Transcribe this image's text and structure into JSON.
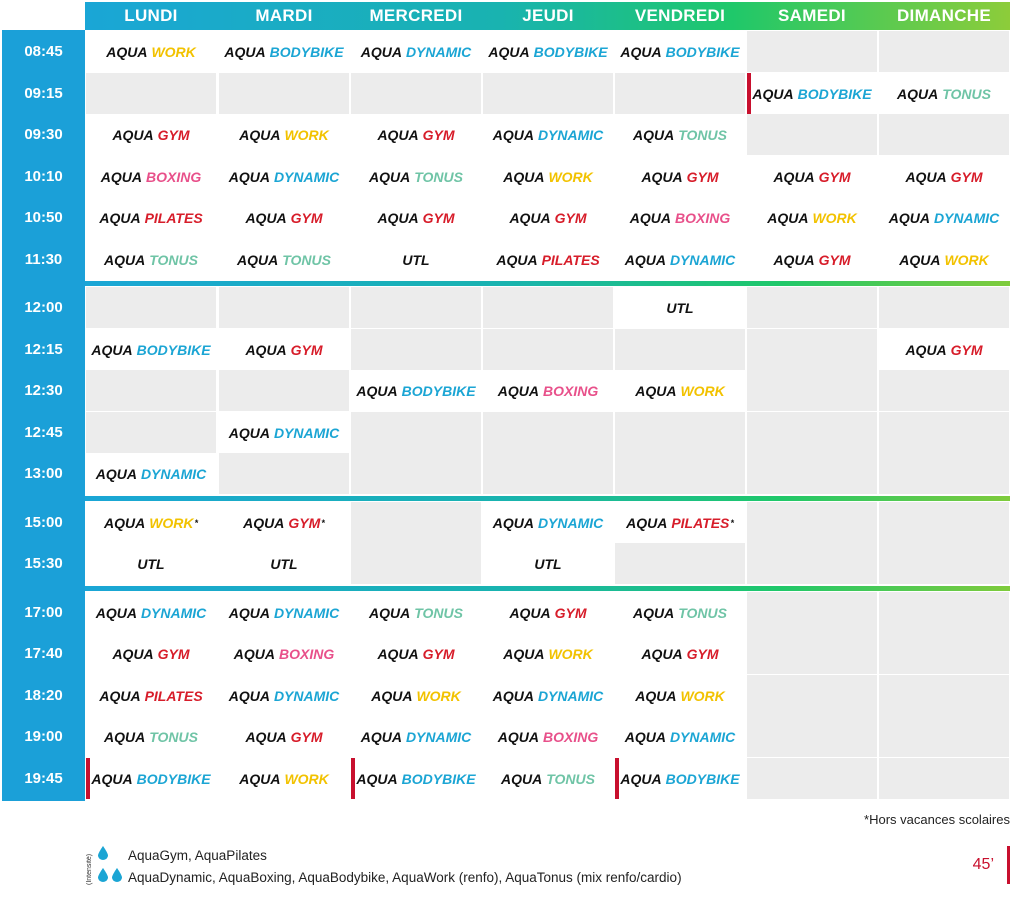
{
  "colors": {
    "work": "#f2c200",
    "bodybike": "#1ba5d4",
    "dynamic": "#1ba5d4",
    "gym": "#d71d2a",
    "tonus": "#6fc4a6",
    "boxing": "#e8508a",
    "pilates": "#d71d2a",
    "utl": "#111111",
    "marker": "#c8102e"
  },
  "days": [
    "LUNDI",
    "MARDI",
    "MERCREDI",
    "JEUDI",
    "VENDREDI",
    "SAMEDI",
    "DIMANCHE"
  ],
  "prefix": "AQUA",
  "blocks": [
    {
      "rows": [
        {
          "time": "08:45",
          "cells": [
            {
              "n": "WORK",
              "c": "work"
            },
            {
              "n": "BODYBIKE",
              "c": "bodybike"
            },
            {
              "n": "DYNAMIC",
              "c": "dynamic"
            },
            {
              "n": "BODYBIKE",
              "c": "bodybike"
            },
            {
              "n": "BODYBIKE",
              "c": "bodybike"
            },
            null,
            null
          ]
        },
        {
          "time": "09:15",
          "cells": [
            null,
            null,
            null,
            null,
            null,
            {
              "n": "BODYBIKE",
              "c": "bodybike",
              "mark": true
            },
            {
              "n": "TONUS",
              "c": "tonus"
            }
          ]
        },
        {
          "time": "09:30",
          "cells": [
            {
              "n": "GYM",
              "c": "gym"
            },
            {
              "n": "WORK",
              "c": "work"
            },
            {
              "n": "GYM",
              "c": "gym"
            },
            {
              "n": "DYNAMIC",
              "c": "dynamic"
            },
            {
              "n": "TONUS",
              "c": "tonus"
            },
            null,
            null
          ]
        },
        {
          "time": "10:10",
          "cells": [
            {
              "n": "BOXING",
              "c": "boxing"
            },
            {
              "n": "DYNAMIC",
              "c": "dynamic"
            },
            {
              "n": "TONUS",
              "c": "tonus"
            },
            {
              "n": "WORK",
              "c": "work"
            },
            {
              "n": "GYM",
              "c": "gym"
            },
            {
              "n": "GYM",
              "c": "gym"
            },
            {
              "n": "GYM",
              "c": "gym"
            }
          ]
        },
        {
          "time": "10:50",
          "cells": [
            {
              "n": "PILATES",
              "c": "pilates"
            },
            {
              "n": "GYM",
              "c": "gym"
            },
            {
              "n": "GYM",
              "c": "gym"
            },
            {
              "n": "GYM",
              "c": "gym"
            },
            {
              "n": "BOXING",
              "c": "boxing"
            },
            {
              "n": "WORK",
              "c": "work"
            },
            {
              "n": "DYNAMIC",
              "c": "dynamic"
            }
          ]
        },
        {
          "time": "11:30",
          "cells": [
            {
              "n": "TONUS",
              "c": "tonus"
            },
            {
              "n": "TONUS",
              "c": "tonus"
            },
            {
              "n": "UTL",
              "c": "utl",
              "plain": true
            },
            {
              "n": "PILATES",
              "c": "pilates"
            },
            {
              "n": "DYNAMIC",
              "c": "dynamic"
            },
            {
              "n": "GYM",
              "c": "gym"
            },
            {
              "n": "WORK",
              "c": "work"
            }
          ]
        }
      ]
    },
    {
      "rows": [
        {
          "time": "12:00",
          "cells": [
            null,
            null,
            null,
            null,
            {
              "n": "UTL",
              "c": "utl",
              "plain": true
            },
            null,
            null
          ]
        },
        {
          "time": "12:15",
          "cells": [
            {
              "n": "BODYBIKE",
              "c": "bodybike"
            },
            {
              "n": "GYM",
              "c": "gym"
            },
            null,
            null,
            null,
            null,
            {
              "n": "GYM",
              "c": "gym"
            }
          ]
        },
        {
          "time": "12:30",
          "cells": [
            null,
            null,
            {
              "n": "BODYBIKE",
              "c": "bodybike"
            },
            {
              "n": "BOXING",
              "c": "boxing"
            },
            {
              "n": "WORK",
              "c": "work"
            },
            null,
            null
          ]
        },
        {
          "time": "12:45",
          "cells": [
            null,
            {
              "n": "DYNAMIC",
              "c": "dynamic"
            },
            null,
            null,
            null,
            null,
            null
          ]
        },
        {
          "time": "13:00",
          "cells": [
            {
              "n": "DYNAMIC",
              "c": "dynamic"
            },
            null,
            null,
            null,
            null,
            null,
            null
          ]
        }
      ]
    },
    {
      "rows": [
        {
          "time": "15:00",
          "cells": [
            {
              "n": "WORK",
              "c": "work",
              "star": "*"
            },
            {
              "n": "GYM",
              "c": "gym",
              "star": "*"
            },
            null,
            {
              "n": "DYNAMIC",
              "c": "dynamic"
            },
            {
              "n": "PILATES",
              "c": "pilates",
              "star": "*"
            },
            null,
            null
          ]
        },
        {
          "time": "15:30",
          "cells": [
            {
              "n": "UTL",
              "c": "utl",
              "plain": true
            },
            {
              "n": "UTL",
              "c": "utl",
              "plain": true
            },
            null,
            {
              "n": "UTL",
              "c": "utl",
              "plain": true
            },
            null,
            null,
            null
          ]
        }
      ]
    },
    {
      "rows": [
        {
          "time": "17:00",
          "cells": [
            {
              "n": "DYNAMIC",
              "c": "dynamic"
            },
            {
              "n": "DYNAMIC",
              "c": "dynamic"
            },
            {
              "n": "TONUS",
              "c": "tonus"
            },
            {
              "n": "GYM",
              "c": "gym"
            },
            {
              "n": "TONUS",
              "c": "tonus"
            },
            null,
            null
          ]
        },
        {
          "time": "17:40",
          "cells": [
            {
              "n": "GYM",
              "c": "gym"
            },
            {
              "n": "BOXING",
              "c": "boxing"
            },
            {
              "n": "GYM",
              "c": "gym"
            },
            {
              "n": "WORK",
              "c": "work"
            },
            {
              "n": "GYM",
              "c": "gym"
            },
            null,
            null
          ]
        },
        {
          "time": "18:20",
          "cells": [
            {
              "n": "PILATES",
              "c": "pilates"
            },
            {
              "n": "DYNAMIC",
              "c": "dynamic"
            },
            {
              "n": "WORK",
              "c": "work"
            },
            {
              "n": "DYNAMIC",
              "c": "dynamic"
            },
            {
              "n": "WORK",
              "c": "work"
            },
            null,
            null
          ]
        },
        {
          "time": "19:00",
          "cells": [
            {
              "n": "TONUS",
              "c": "tonus"
            },
            {
              "n": "GYM",
              "c": "gym"
            },
            {
              "n": "DYNAMIC",
              "c": "dynamic"
            },
            {
              "n": "BOXING",
              "c": "boxing"
            },
            {
              "n": "DYNAMIC",
              "c": "dynamic"
            },
            null,
            null
          ]
        },
        {
          "time": "19:45",
          "cells": [
            {
              "n": "BODYBIKE",
              "c": "bodybike",
              "mark": true
            },
            {
              "n": "WORK",
              "c": "work"
            },
            {
              "n": "BODYBIKE",
              "c": "bodybike",
              "mark": true
            },
            {
              "n": "TONUS",
              "c": "tonus"
            },
            {
              "n": "BODYBIKE",
              "c": "bodybike",
              "mark": true
            },
            null,
            null
          ]
        }
      ]
    }
  ],
  "footnote": "*Hors vacances scolaires",
  "legend": {
    "intensity_label": "(Intensité)",
    "row1": "AquaGym, AquaPilates",
    "row2": "AquaDynamic, AquaBoxing, AquaBodybike, AquaWork (renfo), AquaTonus (mix renfo/cardio)",
    "row1_icon": "one-drop-icon",
    "row2_icon": "two-drops-icon"
  },
  "duration": "45’"
}
